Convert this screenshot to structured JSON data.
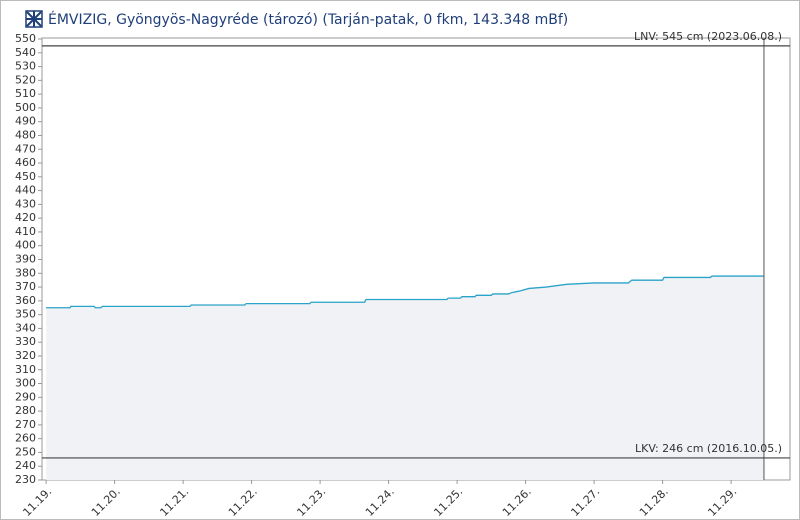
{
  "chart_data": {
    "type": "line",
    "title": "ÉMVIZIG, Gyöngyös-Nagyréde (tározó) (Tarján-patak, 0 fkm, 143.348 mBf)",
    "x": [
      19.0,
      19.35,
      19.36,
      19.7,
      19.72,
      19.8,
      19.82,
      19.9,
      19.92,
      21.1,
      21.12,
      21.9,
      21.92,
      22.85,
      22.87,
      23.65,
      23.67,
      24.85,
      24.87,
      25.05,
      25.07,
      25.26,
      25.28,
      25.5,
      25.52,
      25.75,
      25.8,
      25.9,
      26.05,
      26.3,
      26.6,
      27.0,
      27.5,
      27.55,
      28.0,
      28.02,
      28.7,
      28.72,
      29.48
    ],
    "series": [
      {
        "color": "#2aa3c8",
        "values": [
          355,
          355,
          356,
          356,
          355,
          355,
          356,
          356,
          356,
          356,
          357,
          357,
          358,
          358,
          359,
          359,
          361,
          361,
          362,
          362,
          363,
          363,
          364,
          364,
          365,
          365,
          366,
          367,
          369,
          370,
          372,
          373,
          373,
          375,
          375,
          377,
          377,
          378,
          378
        ]
      }
    ],
    "xlim": [
      18.94,
      29.86
    ],
    "xticks": [
      {
        "value": 19,
        "label": "11.19."
      },
      {
        "value": 20,
        "label": "11.20."
      },
      {
        "value": 21,
        "label": "11.21."
      },
      {
        "value": 22,
        "label": "11.22."
      },
      {
        "value": 23,
        "label": "11.23."
      },
      {
        "value": 24,
        "label": "11.24."
      },
      {
        "value": 25,
        "label": "11.25."
      },
      {
        "value": 26,
        "label": "11.26."
      },
      {
        "value": 27,
        "label": "11.27."
      },
      {
        "value": 28,
        "label": "11.28."
      },
      {
        "value": 29,
        "label": "11.29."
      }
    ],
    "ylim": [
      230,
      550
    ],
    "yticks": [
      230,
      240,
      250,
      260,
      270,
      280,
      290,
      300,
      310,
      320,
      330,
      340,
      350,
      360,
      370,
      380,
      390,
      400,
      410,
      420,
      430,
      440,
      450,
      460,
      470,
      480,
      490,
      500,
      510,
      520,
      530,
      540,
      550
    ],
    "reference_lines": [
      {
        "value": 545,
        "label": "LNV: 545 cm (2023.06.08.)"
      },
      {
        "value": 246,
        "label": "LKV: 246 cm (2016.10.05.)"
      }
    ],
    "fill": "#f0f2f6",
    "grid": false
  }
}
